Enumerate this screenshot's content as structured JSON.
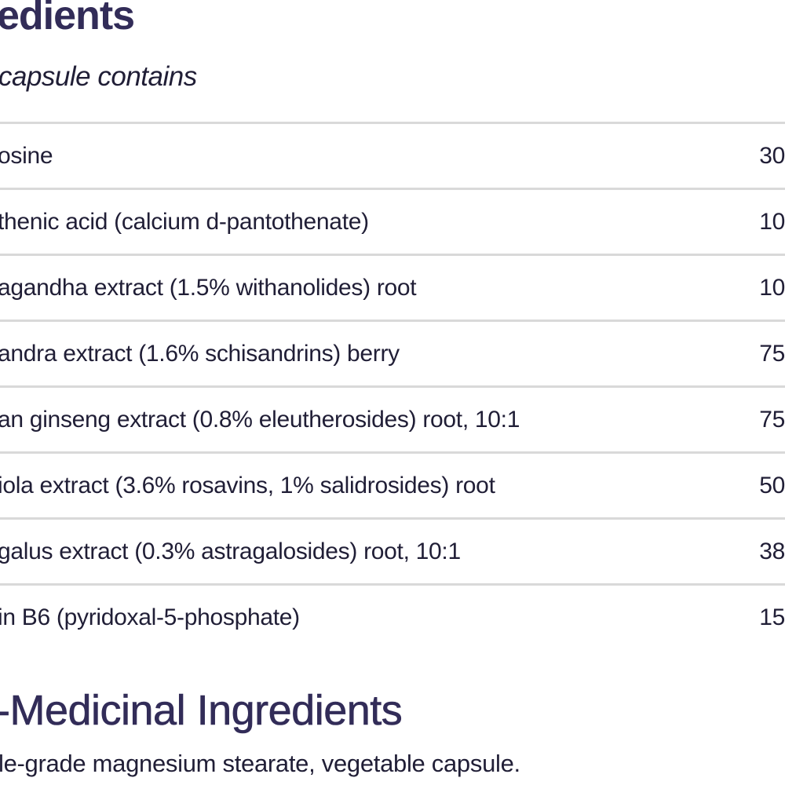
{
  "colors": {
    "heading": "#322c58",
    "body": "#201e36",
    "divider": "#d9d9d9",
    "background": "#ffffff"
  },
  "header": {
    "title_visible": "edients",
    "subtitle_visible": "capsule contains"
  },
  "ingredients_table": {
    "rows": [
      {
        "name": "osine",
        "amount": "30"
      },
      {
        "name": "thenic acid (calcium d-pantothenate)",
        "amount": "10"
      },
      {
        "name": "agandha extract (1.5% withanolides) root",
        "amount": "10"
      },
      {
        "name": "andra extract (1.6% schisandrins) berry",
        "amount": "75"
      },
      {
        "name": "an ginseng extract (0.8% eleutherosides) root, 10:1",
        "amount": "75"
      },
      {
        "name": "iola extract (3.6% rosavins, 1% salidrosides) root",
        "amount": "50"
      },
      {
        "name": "galus extract (0.3% astragalosides) root, 10:1",
        "amount": "38"
      },
      {
        "name": "in B6 (pyridoxal-5-phosphate)",
        "amount": "15"
      }
    ]
  },
  "non_medicinal": {
    "title_visible": "-Medicinal Ingredients",
    "text_visible": "le-grade magnesium stearate, vegetable capsule."
  }
}
